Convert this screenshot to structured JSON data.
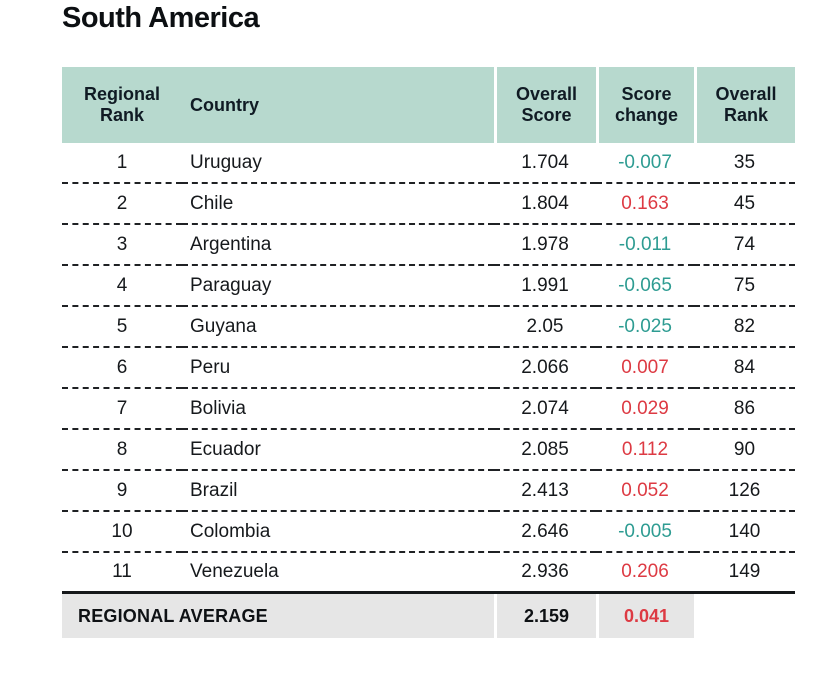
{
  "title": "South America",
  "colors": {
    "header_bg": "#b7d9ce",
    "footer_bg": "#e6e6e6",
    "increase": "#dd3a43",
    "decrease": "#2e9c92"
  },
  "table": {
    "headers": {
      "regional_rank": "Regional Rank",
      "country": "Country",
      "overall_score": "Overall Score",
      "score_change": "Score change",
      "overall_rank": "Overall Rank"
    },
    "rows": [
      {
        "regional_rank": "1",
        "country": "Uruguay",
        "overall_score": "1.704",
        "score_change": "-0.007",
        "overall_rank": "35"
      },
      {
        "regional_rank": "2",
        "country": "Chile",
        "overall_score": "1.804",
        "score_change": "0.163",
        "overall_rank": "45"
      },
      {
        "regional_rank": "3",
        "country": "Argentina",
        "overall_score": "1.978",
        "score_change": "-0.011",
        "overall_rank": "74"
      },
      {
        "regional_rank": "4",
        "country": "Paraguay",
        "overall_score": "1.991",
        "score_change": "-0.065",
        "overall_rank": "75"
      },
      {
        "regional_rank": "5",
        "country": "Guyana",
        "overall_score": "2.05",
        "score_change": "-0.025",
        "overall_rank": "82"
      },
      {
        "regional_rank": "6",
        "country": "Peru",
        "overall_score": "2.066",
        "score_change": "0.007",
        "overall_rank": "84"
      },
      {
        "regional_rank": "7",
        "country": "Bolivia",
        "overall_score": "2.074",
        "score_change": "0.029",
        "overall_rank": "86"
      },
      {
        "regional_rank": "8",
        "country": "Ecuador",
        "overall_score": "2.085",
        "score_change": "0.112",
        "overall_rank": "90"
      },
      {
        "regional_rank": "9",
        "country": "Brazil",
        "overall_score": "2.413",
        "score_change": "0.052",
        "overall_rank": "126"
      },
      {
        "regional_rank": "10",
        "country": "Colombia",
        "overall_score": "2.646",
        "score_change": "-0.005",
        "overall_rank": "140"
      },
      {
        "regional_rank": "11",
        "country": "Venezuela",
        "overall_score": "2.936",
        "score_change": "0.206",
        "overall_rank": "149"
      }
    ],
    "footer": {
      "label": "REGIONAL AVERAGE",
      "overall_score": "2.159",
      "score_change": "0.041"
    }
  }
}
